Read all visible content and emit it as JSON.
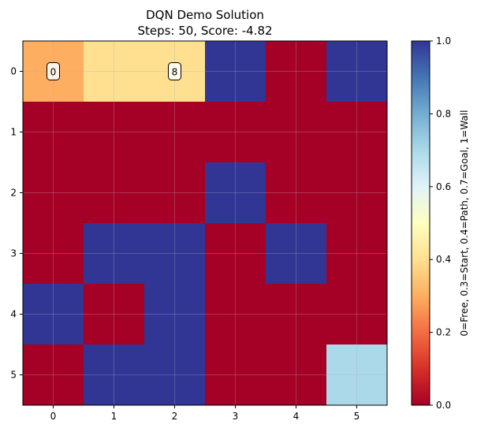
{
  "chart_data": {
    "type": "heatmap",
    "title": "DQN Demo Solution",
    "subtitle": "Steps: 50, Score: -4.82",
    "x_ticks": [
      "0",
      "1",
      "2",
      "3",
      "4",
      "5"
    ],
    "y_ticks": [
      "0",
      "1",
      "2",
      "3",
      "4",
      "5"
    ],
    "colorbar": {
      "label": "0=Free, 0.3=Start, 0.4=Path, 0.7=Goal, 1=Wall",
      "ticks": [
        "0.0",
        "0.2",
        "0.4",
        "0.6",
        "0.8",
        "1.0"
      ],
      "tick_values": [
        0,
        0.2,
        0.4,
        0.6,
        0.8,
        1.0
      ],
      "range": [
        0,
        1
      ],
      "colormap": "RdYlBu"
    },
    "grid": true,
    "grid_values": [
      [
        0.3,
        0.4,
        0.4,
        1,
        0,
        1
      ],
      [
        0,
        0,
        0,
        0,
        0,
        0
      ],
      [
        0,
        0,
        0,
        1,
        0,
        0
      ],
      [
        0,
        1,
        1,
        0,
        1,
        0
      ],
      [
        1,
        0,
        1,
        0,
        0,
        0
      ],
      [
        0,
        1,
        1,
        0,
        0,
        0.7
      ]
    ],
    "annotations": [
      {
        "row": 0,
        "col": 0,
        "text": "0"
      },
      {
        "row": 0,
        "col": 2,
        "text": "8"
      }
    ]
  }
}
